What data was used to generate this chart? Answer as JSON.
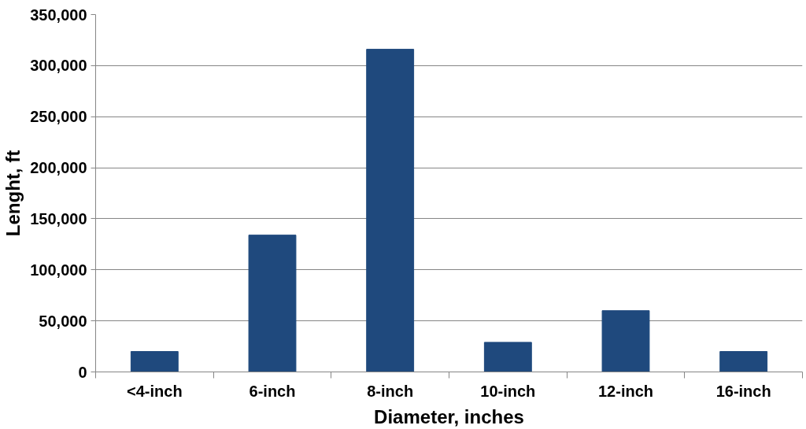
{
  "chart_data": {
    "type": "bar",
    "xlabel": "Diameter, inches",
    "ylabel": "Lenght, ft",
    "categories": [
      "<4-inch",
      "6-inch",
      "8-inch",
      "10-inch",
      "12-inch",
      "16-inch"
    ],
    "series": [
      {
        "color": "#1f497d",
        "values": [
          20000,
          134000,
          316000,
          29000,
          60000,
          20000
        ]
      }
    ],
    "ylim": [
      0,
      350000
    ],
    "yticks": [
      {
        "value": 0,
        "label": "0"
      },
      {
        "value": 50000,
        "label": "50,000"
      },
      {
        "value": 100000,
        "label": "100,000"
      },
      {
        "value": 150000,
        "label": "150,000"
      },
      {
        "value": 200000,
        "label": "200,000"
      },
      {
        "value": 250000,
        "label": "250,000"
      },
      {
        "value": 300000,
        "label": "300,000"
      },
      {
        "value": 350000,
        "label": "350,000"
      }
    ],
    "grid": "y"
  }
}
